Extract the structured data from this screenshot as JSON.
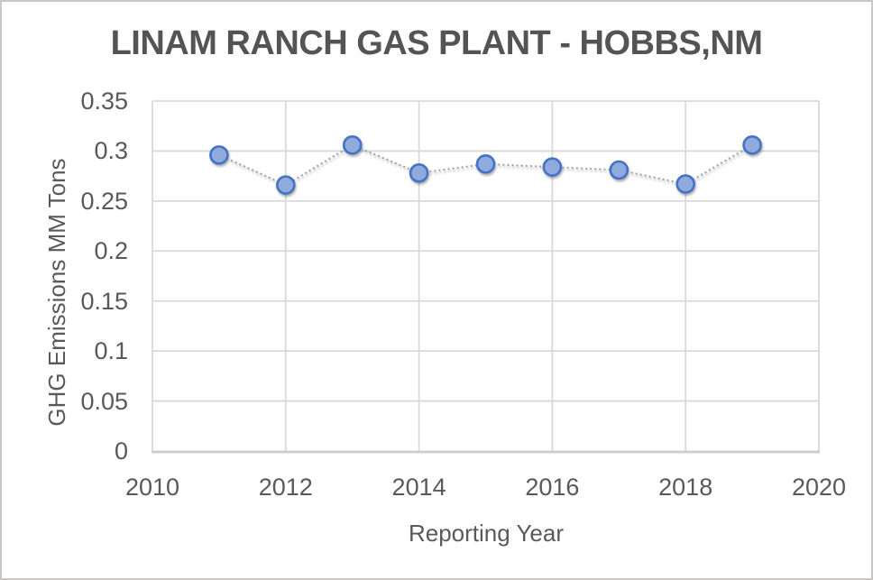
{
  "chart_data": {
    "type": "line",
    "title": "LINAM RANCH GAS PLANT - HOBBS,NM",
    "xlabel": "Reporting Year",
    "ylabel": "GHG Emissions MM Tons",
    "x": [
      2011,
      2012,
      2013,
      2014,
      2015,
      2016,
      2017,
      2018,
      2019
    ],
    "values": [
      0.296,
      0.266,
      0.306,
      0.278,
      0.287,
      0.284,
      0.281,
      0.267,
      0.306
    ],
    "xlim": [
      2010,
      2020
    ],
    "ylim": [
      0,
      0.35
    ],
    "xticks": {
      "values": [
        2010,
        2012,
        2014,
        2016,
        2018,
        2020
      ],
      "labels": [
        "2010",
        "2012",
        "2014",
        "2016",
        "2018",
        "2020"
      ]
    },
    "yticks": {
      "values": [
        0,
        0.05,
        0.1,
        0.15,
        0.2,
        0.25,
        0.3,
        0.35
      ],
      "labels": [
        "0",
        "0.05",
        "0.1",
        "0.15",
        "0.2",
        "0.25",
        "0.3",
        "0.35"
      ]
    },
    "grid": true,
    "legend": "none",
    "line_style": "dotted",
    "marker": "circle",
    "colors": {
      "marker_fill": "#8FAADC",
      "marker_stroke": "#4472C4",
      "line": "#A6A6A6",
      "gridline": "#D9D9D9",
      "axis_line": "#D0CECE",
      "tick_text": "#595959",
      "title_text": "#545454",
      "border": "#C9C7C5",
      "background": "#FFFFFF"
    }
  }
}
